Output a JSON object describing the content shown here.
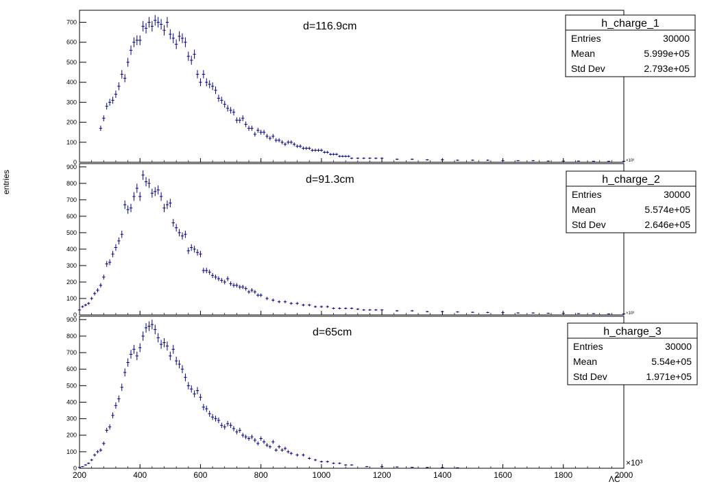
{
  "ylabel": "entries",
  "xlabel": "ΛC",
  "x_exponent_bottom": "×10³",
  "x_exponent_small": "×10³",
  "colors": {
    "marker": "#000080",
    "axis": "#000000",
    "background": "#ffffff"
  },
  "chart_data": [
    {
      "type": "scatter",
      "annotation": "d=116.9cm",
      "xlim": [
        200,
        2000
      ],
      "ylim": [
        0,
        760
      ],
      "yticks": [
        0,
        100,
        200,
        300,
        400,
        500,
        600,
        700
      ],
      "stats": {
        "name": "h_charge_1",
        "rows": [
          {
            "label": "Entries",
            "value": "30000"
          },
          {
            "label": "Mean",
            "value": "5.999e+05"
          },
          {
            "label": "Std Dev",
            "value": "2.793e+05"
          }
        ]
      },
      "x": [
        270,
        280,
        290,
        300,
        310,
        320,
        330,
        340,
        350,
        360,
        370,
        380,
        390,
        400,
        410,
        420,
        430,
        440,
        450,
        460,
        470,
        480,
        490,
        500,
        510,
        520,
        530,
        540,
        550,
        560,
        570,
        580,
        590,
        600,
        610,
        620,
        630,
        640,
        650,
        660,
        670,
        680,
        690,
        700,
        710,
        720,
        730,
        740,
        750,
        760,
        770,
        780,
        790,
        800,
        810,
        820,
        830,
        840,
        850,
        860,
        870,
        880,
        890,
        900,
        910,
        920,
        930,
        940,
        950,
        960,
        970,
        980,
        990,
        1000,
        1010,
        1020,
        1030,
        1040,
        1050,
        1060,
        1070,
        1080,
        1090,
        1100,
        1120,
        1140,
        1160,
        1180,
        1200,
        1250,
        1300,
        1350,
        1400,
        1450,
        1500,
        1550,
        1600,
        1650,
        1700,
        1750,
        1800,
        1850,
        1900,
        1950,
        2000
      ],
      "y": [
        170,
        220,
        280,
        300,
        310,
        340,
        380,
        440,
        420,
        500,
        560,
        600,
        610,
        610,
        680,
        670,
        700,
        680,
        710,
        700,
        690,
        660,
        700,
        640,
        620,
        590,
        630,
        620,
        600,
        530,
        510,
        540,
        440,
        400,
        440,
        400,
        390,
        380,
        360,
        320,
        310,
        290,
        270,
        260,
        250,
        210,
        210,
        220,
        190,
        170,
        170,
        140,
        160,
        150,
        150,
        130,
        120,
        130,
        110,
        110,
        100,
        90,
        100,
        100,
        90,
        80,
        80,
        70,
        70,
        70,
        60,
        60,
        60,
        60,
        50,
        50,
        40,
        40,
        40,
        30,
        30,
        30,
        30,
        20,
        20,
        20,
        20,
        20,
        20,
        15,
        15,
        12,
        12,
        10,
        10,
        10,
        8,
        8,
        8,
        6,
        6,
        6,
        5,
        5,
        5
      ]
    },
    {
      "type": "scatter",
      "annotation": "d=91.3cm",
      "xlim": [
        200,
        2000
      ],
      "ylim": [
        0,
        920
      ],
      "yticks": [
        0,
        100,
        200,
        300,
        400,
        500,
        600,
        700,
        800,
        900
      ],
      "stats": {
        "name": "h_charge_2",
        "rows": [
          {
            "label": "Entries",
            "value": "30000"
          },
          {
            "label": "Mean",
            "value": "5.574e+05"
          },
          {
            "label": "Std Dev",
            "value": "2.646e+05"
          }
        ]
      },
      "x": [
        200,
        210,
        220,
        230,
        240,
        250,
        260,
        270,
        280,
        290,
        300,
        310,
        320,
        330,
        340,
        350,
        360,
        370,
        380,
        390,
        400,
        410,
        420,
        430,
        440,
        450,
        460,
        470,
        480,
        490,
        500,
        510,
        520,
        530,
        540,
        550,
        560,
        570,
        580,
        590,
        600,
        610,
        620,
        630,
        640,
        650,
        660,
        670,
        680,
        690,
        700,
        710,
        720,
        730,
        740,
        750,
        760,
        770,
        780,
        790,
        800,
        820,
        840,
        860,
        880,
        900,
        920,
        940,
        960,
        980,
        1000,
        1020,
        1040,
        1060,
        1080,
        1100,
        1120,
        1140,
        1160,
        1180,
        1200,
        1250,
        1300,
        1350,
        1400,
        1450,
        1500,
        1550,
        1600,
        1650,
        1700,
        1750,
        1800,
        1850,
        1900,
        1950,
        2000
      ],
      "y": [
        30,
        50,
        60,
        70,
        100,
        130,
        150,
        180,
        230,
        310,
        320,
        370,
        410,
        450,
        490,
        670,
        640,
        650,
        720,
        770,
        720,
        850,
        810,
        800,
        740,
        750,
        760,
        720,
        650,
        670,
        680,
        560,
        530,
        500,
        480,
        490,
        390,
        410,
        400,
        380,
        370,
        270,
        270,
        260,
        240,
        230,
        220,
        210,
        200,
        220,
        190,
        180,
        180,
        170,
        170,
        160,
        140,
        150,
        140,
        120,
        120,
        100,
        90,
        80,
        80,
        70,
        70,
        60,
        60,
        50,
        50,
        50,
        40,
        40,
        40,
        40,
        35,
        30,
        30,
        30,
        30,
        25,
        25,
        20,
        20,
        18,
        16,
        15,
        14,
        12,
        12,
        10,
        10,
        8,
        8,
        6,
        6
      ]
    },
    {
      "type": "scatter",
      "annotation": "d=65cm",
      "xlim": [
        200,
        2000
      ],
      "ylim": [
        0,
        920
      ],
      "yticks": [
        0,
        100,
        200,
        300,
        400,
        500,
        600,
        700,
        800,
        900
      ],
      "stats": {
        "name": "h_charge_3",
        "rows": [
          {
            "label": "Entries",
            "value": "30000"
          },
          {
            "label": "Mean",
            "value": "5.54e+05"
          },
          {
            "label": "Std Dev",
            "value": "1.971e+05"
          }
        ]
      },
      "x": [
        200,
        210,
        220,
        230,
        240,
        250,
        260,
        270,
        280,
        290,
        300,
        310,
        320,
        330,
        340,
        350,
        360,
        370,
        380,
        390,
        400,
        410,
        420,
        430,
        440,
        450,
        460,
        470,
        480,
        490,
        500,
        510,
        520,
        530,
        540,
        550,
        560,
        570,
        580,
        590,
        600,
        610,
        620,
        630,
        640,
        650,
        660,
        670,
        680,
        690,
        700,
        710,
        720,
        730,
        740,
        750,
        760,
        770,
        780,
        790,
        800,
        810,
        820,
        830,
        840,
        850,
        860,
        870,
        880,
        890,
        900,
        920,
        940,
        960,
        980,
        1000,
        1020,
        1040,
        1060,
        1080,
        1100,
        1150,
        1200,
        1250,
        1300,
        1350,
        1400,
        1450
      ],
      "y": [
        5,
        10,
        20,
        30,
        50,
        80,
        100,
        110,
        150,
        230,
        250,
        320,
        380,
        420,
        490,
        580,
        640,
        690,
        720,
        680,
        730,
        800,
        850,
        860,
        870,
        840,
        790,
        750,
        760,
        740,
        680,
        720,
        650,
        630,
        600,
        550,
        500,
        480,
        450,
        470,
        430,
        370,
        360,
        330,
        310,
        300,
        290,
        260,
        250,
        270,
        260,
        240,
        220,
        230,
        200,
        190,
        180,
        190,
        170,
        150,
        180,
        160,
        140,
        130,
        160,
        110,
        130,
        110,
        120,
        100,
        90,
        80,
        80,
        60,
        50,
        40,
        40,
        30,
        30,
        20,
        20,
        10,
        10,
        8,
        6,
        5,
        4,
        3
      ]
    }
  ],
  "x_ticks": [
    200,
    400,
    600,
    800,
    1000,
    1200,
    1400,
    1600,
    1800,
    2000
  ]
}
